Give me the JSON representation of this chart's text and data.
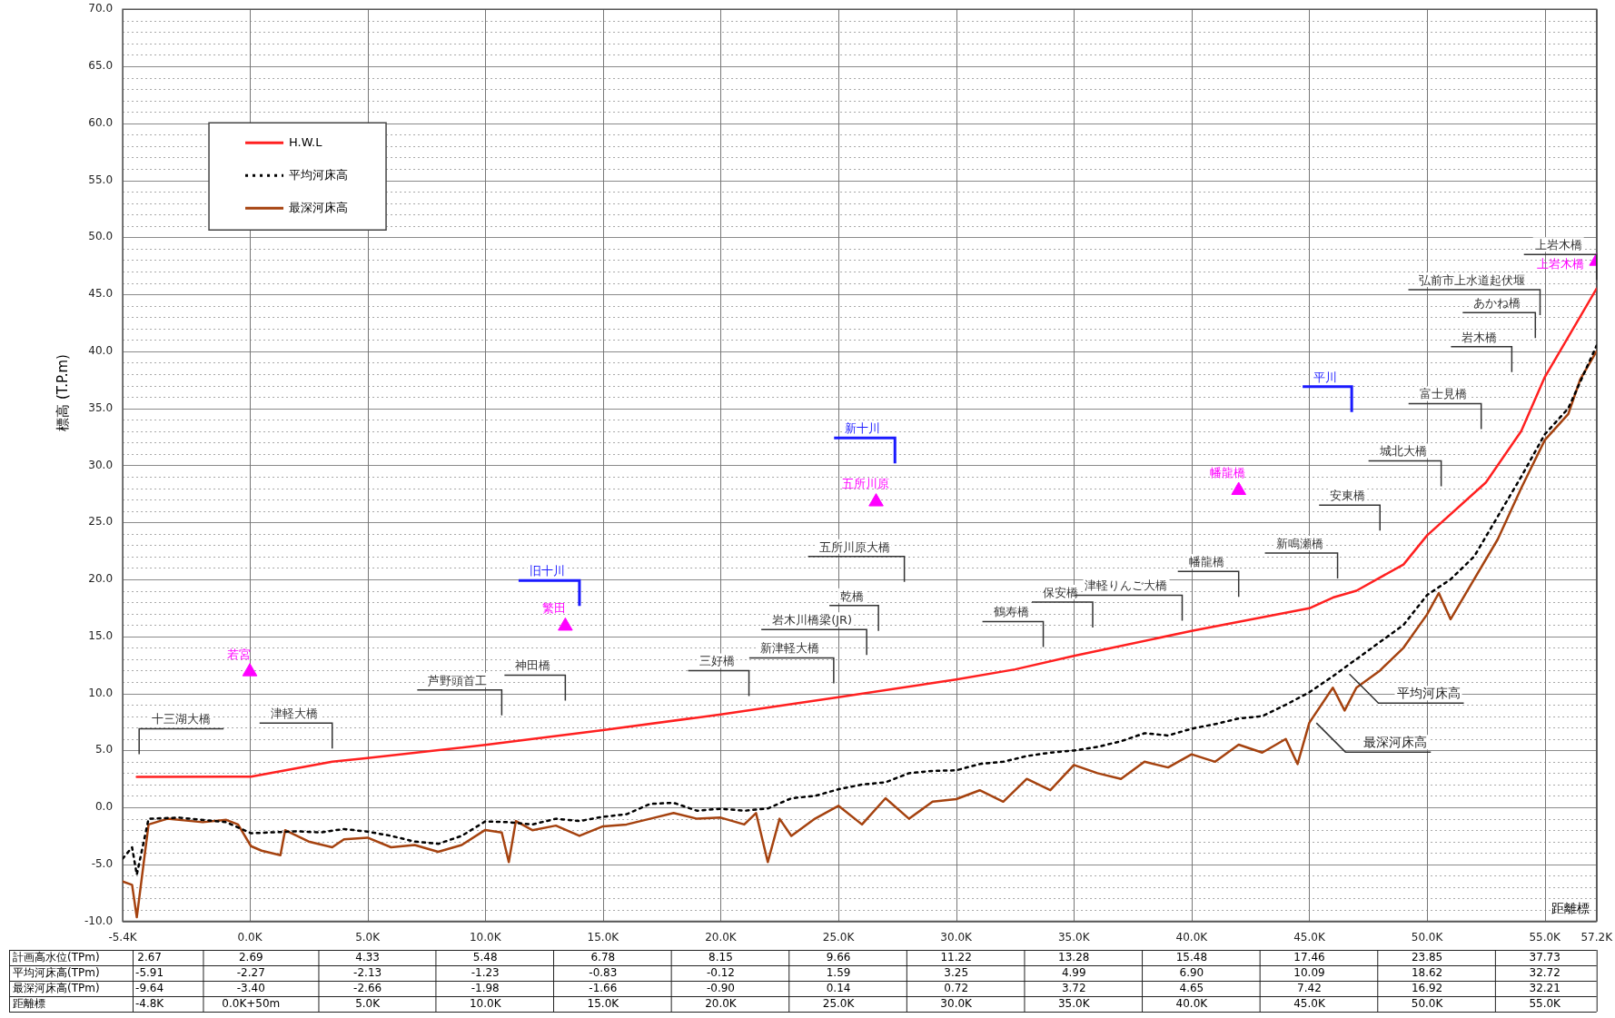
{
  "chart_data": {
    "type": "line",
    "xlabel": "距離標",
    "ylabel": "標高 (T.P.m)",
    "xlim": [
      -5.4,
      57.2
    ],
    "xticks": [
      {
        "value": -5.4,
        "label": "-5.4K"
      },
      {
        "value": 0,
        "label": "0.0K"
      },
      {
        "value": 5,
        "label": "5.0K"
      },
      {
        "value": 10,
        "label": "10.0K"
      },
      {
        "value": 15,
        "label": "15.0K"
      },
      {
        "value": 20,
        "label": "20.0K"
      },
      {
        "value": 25,
        "label": "25.0K"
      },
      {
        "value": 30,
        "label": "30.0K"
      },
      {
        "value": 35,
        "label": "35.0K"
      },
      {
        "value": 40,
        "label": "40.0K"
      },
      {
        "value": 45,
        "label": "45.0K"
      },
      {
        "value": 50,
        "label": "50.0K"
      },
      {
        "value": 55,
        "label": "55.0K"
      },
      {
        "value": 57.2,
        "label": "57.2K"
      }
    ],
    "ylim": [
      -10,
      70
    ],
    "yticks": [
      {
        "value": -10,
        "label": "-10.0"
      },
      {
        "value": -9,
        "label": null
      },
      {
        "value": -8,
        "label": null
      },
      {
        "value": -7,
        "label": null
      },
      {
        "value": -6,
        "label": null
      },
      {
        "value": -5,
        "label": "-5.0"
      },
      {
        "value": -4,
        "label": null
      },
      {
        "value": -3,
        "label": null
      },
      {
        "value": -2,
        "label": null
      },
      {
        "value": -1,
        "label": null
      },
      {
        "value": 0,
        "label": "0.0"
      },
      {
        "value": 1,
        "label": null
      },
      {
        "value": 2,
        "label": null
      },
      {
        "value": 3,
        "label": null
      },
      {
        "value": 4,
        "label": null
      },
      {
        "value": 5,
        "label": "5.0"
      },
      {
        "value": 6,
        "label": null
      },
      {
        "value": 7,
        "label": null
      },
      {
        "value": 8,
        "label": null
      },
      {
        "value": 9,
        "label": null
      },
      {
        "value": 10,
        "label": "10.0"
      },
      {
        "value": 11,
        "label": null
      },
      {
        "value": 12,
        "label": null
      },
      {
        "value": 13,
        "label": null
      },
      {
        "value": 14,
        "label": null
      },
      {
        "value": 15,
        "label": "15.0"
      },
      {
        "value": 16,
        "label": null
      },
      {
        "value": 17,
        "label": null
      },
      {
        "value": 18,
        "label": null
      },
      {
        "value": 19,
        "label": null
      },
      {
        "value": 20,
        "label": "20.0"
      },
      {
        "value": 21,
        "label": null
      },
      {
        "value": 22,
        "label": null
      },
      {
        "value": 23,
        "label": null
      },
      {
        "value": 24,
        "label": null
      },
      {
        "value": 25,
        "label": "25.0"
      },
      {
        "value": 26,
        "label": null
      },
      {
        "value": 27,
        "label": null
      },
      {
        "value": 28,
        "label": null
      },
      {
        "value": 29,
        "label": null
      },
      {
        "value": 30,
        "label": "30.0"
      },
      {
        "value": 31,
        "label": null
      },
      {
        "value": 32,
        "label": null
      },
      {
        "value": 33,
        "label": null
      },
      {
        "value": 34,
        "label": null
      },
      {
        "value": 35,
        "label": "35.0"
      },
      {
        "value": 36,
        "label": null
      },
      {
        "value": 37,
        "label": null
      },
      {
        "value": 38,
        "label": null
      },
      {
        "value": 39,
        "label": null
      },
      {
        "value": 40,
        "label": "40.0"
      },
      {
        "value": 41,
        "label": null
      },
      {
        "value": 42,
        "label": null
      },
      {
        "value": 43,
        "label": null
      },
      {
        "value": 44,
        "label": null
      },
      {
        "value": 45,
        "label": "45.0"
      },
      {
        "value": 46,
        "label": null
      },
      {
        "value": 47,
        "label": null
      },
      {
        "value": 48,
        "label": null
      },
      {
        "value": 49,
        "label": null
      },
      {
        "value": 50,
        "label": "50.0"
      },
      {
        "value": 51,
        "label": null
      },
      {
        "value": 52,
        "label": null
      },
      {
        "value": 53,
        "label": null
      },
      {
        "value": 54,
        "label": null
      },
      {
        "value": 55,
        "label": "55.0"
      },
      {
        "value": 56,
        "label": null
      },
      {
        "value": 57,
        "label": null
      },
      {
        "value": 58,
        "label": null
      },
      {
        "value": 59,
        "label": null
      },
      {
        "value": 60,
        "label": "60.0"
      },
      {
        "value": 61,
        "label": null
      },
      {
        "value": 62,
        "label": null
      },
      {
        "value": 63,
        "label": null
      },
      {
        "value": 64,
        "label": null
      },
      {
        "value": 65,
        "label": "65.0"
      },
      {
        "value": 66,
        "label": null
      },
      {
        "value": 67,
        "label": null
      },
      {
        "value": 68,
        "label": null
      },
      {
        "value": 69,
        "label": null
      },
      {
        "value": 70,
        "label": "70.0"
      }
    ],
    "grid": true,
    "legend": "top left",
    "series": [
      {
        "name": "H.W.L",
        "color": "#ff2020",
        "line_style": "solid",
        "x": [
          -4.8,
          0.05,
          3.5,
          5,
          10,
          15,
          20,
          25,
          30,
          32.5,
          35,
          40,
          45,
          46,
          47,
          49,
          50,
          52.5,
          54,
          55,
          57.2
        ],
        "values": [
          2.67,
          2.69,
          4.0,
          4.33,
          5.48,
          6.78,
          8.15,
          9.66,
          11.22,
          12.1,
          13.28,
          15.48,
          17.46,
          18.4,
          19.0,
          21.3,
          23.85,
          28.5,
          33,
          37.73,
          45.5
        ]
      },
      {
        "name": "平均河床高",
        "color": "#000000",
        "line_style": "dotted",
        "x": [
          -5.4,
          -5.0,
          -4.8,
          -4.3,
          -3,
          -1,
          0.05,
          2,
          3,
          4,
          5,
          6,
          7,
          8,
          9,
          10,
          11,
          12,
          13,
          14,
          15,
          16,
          17,
          18,
          19,
          20,
          21,
          22,
          23,
          24,
          25,
          26,
          27,
          28,
          29,
          30,
          31,
          32,
          33,
          34,
          35,
          36,
          37,
          38,
          39,
          40,
          41,
          42,
          43,
          44,
          45,
          46,
          47,
          48,
          49,
          50,
          51,
          52,
          53,
          54,
          55,
          56,
          57.2
        ],
        "values": [
          -4.5,
          -3.5,
          -5.91,
          -1.0,
          -0.9,
          -1.3,
          -2.27,
          -2.1,
          -2.2,
          -1.9,
          -2.13,
          -2.5,
          -3.0,
          -3.2,
          -2.5,
          -1.23,
          -1.3,
          -1.5,
          -1.0,
          -1.2,
          -0.83,
          -0.6,
          0.3,
          0.4,
          -0.3,
          -0.12,
          -0.3,
          -0.1,
          0.8,
          1.0,
          1.59,
          2.0,
          2.2,
          3.0,
          3.2,
          3.25,
          3.8,
          4.0,
          4.5,
          4.8,
          4.99,
          5.3,
          5.8,
          6.5,
          6.3,
          6.9,
          7.3,
          7.8,
          8.0,
          9.0,
          10.09,
          11.5,
          13.0,
          14.5,
          16.0,
          18.62,
          20.0,
          22.0,
          25.5,
          29.0,
          32.72,
          35.0,
          40.5
        ]
      },
      {
        "name": "最深河床高",
        "color": "#a5420f",
        "line_style": "solid",
        "x": [
          -5.4,
          -5.0,
          -4.8,
          -4.3,
          -3.5,
          -2,
          -1,
          -0.5,
          0.05,
          0.5,
          1.3,
          1.5,
          2.5,
          3.5,
          4,
          5,
          6,
          7,
          8,
          9,
          10,
          10.7,
          11,
          11.3,
          12,
          13,
          14,
          15,
          16,
          17,
          18,
          19,
          20,
          21,
          21.5,
          22,
          22.5,
          23,
          24,
          25,
          26,
          27,
          28,
          29,
          30,
          31,
          32,
          33,
          34,
          35,
          36,
          37,
          38,
          39,
          40,
          41,
          42,
          43,
          44,
          44.5,
          45,
          46,
          46.5,
          47,
          48,
          49,
          50,
          50.5,
          51,
          52,
          53,
          54,
          55,
          56,
          56.5,
          57.2
        ],
        "values": [
          -6.5,
          -6.8,
          -9.64,
          -1.5,
          -1.0,
          -1.3,
          -1.1,
          -1.5,
          -3.4,
          -3.8,
          -4.2,
          -2.0,
          -3.0,
          -3.5,
          -2.8,
          -2.66,
          -3.5,
          -3.3,
          -3.9,
          -3.3,
          -1.98,
          -2.2,
          -4.8,
          -1.2,
          -2.0,
          -1.6,
          -2.5,
          -1.66,
          -1.5,
          -1.0,
          -0.5,
          -1.0,
          -0.9,
          -1.5,
          -0.5,
          -4.8,
          -1.0,
          -2.5,
          -1.0,
          0.14,
          -1.5,
          0.8,
          -1.0,
          0.5,
          0.72,
          1.5,
          0.5,
          2.5,
          1.5,
          3.72,
          3.0,
          2.5,
          4.0,
          3.5,
          4.65,
          4.0,
          5.5,
          4.8,
          6.0,
          3.8,
          7.42,
          10.5,
          8.5,
          10.5,
          12.0,
          14.0,
          16.92,
          18.8,
          16.5,
          20.0,
          23.5,
          28.0,
          32.21,
          34.5,
          37.5,
          40.0
        ]
      },
      {
        "type": "scatter",
        "color": "#ff00ff",
        "marker": "triangle",
        "x": [
          0,
          13.4,
          26.6,
          42.0,
          57.2
        ],
        "values": [
          11.9,
          15.9,
          26.8,
          27.8,
          47.9
        ],
        "value_labels": [
          "若宮",
          "繁田",
          "五所川原",
          "幡龍橋",
          "上岩木橋"
        ]
      }
    ],
    "annotations": [
      "計画高水位(TPm)",
      "2.67",
      "2.69",
      "4.33",
      "5.48",
      "6.78",
      "8.15",
      "9.66",
      "11.22",
      "13.28",
      "15.48",
      "17.46",
      "23.85",
      "37.73",
      "平均河床高(TPm)",
      "-5.91",
      "-2.27",
      "-2.13",
      "-1.23",
      "-0.83",
      "-0.12",
      "1.59",
      "3.25",
      "4.99",
      "6.90",
      "10.09",
      "18.62",
      "32.72",
      "最深河床高(TPm)",
      "-9.64",
      "-3.40",
      "-2.66",
      "-1.98",
      "-1.66",
      "-0.90",
      "0.14",
      "0.72",
      "3.72",
      "4.65",
      "7.42",
      "16.92",
      "32.21",
      "距離標",
      "-4.8K",
      "0.0K+50m",
      "5.0K",
      "10.0K",
      "15.0K",
      "20.0K",
      "25.0K",
      "30.0K",
      "35.0K",
      "40.0K",
      "45.0K",
      "50.0K",
      "55.0K",
      "十三湖大橋",
      "津軽大橋",
      "芦野頭首工",
      "神田橋",
      "三好橋",
      "新津軽大橋",
      "岩木川橋梁(JR)",
      "乾橋",
      "五所川原大橋",
      "鶴寿橋",
      "保安橋",
      "津軽りんご大橋",
      "幡龍橋",
      "新鳴瀬橋",
      "安東橋",
      "城北大橋",
      "富士見橋",
      "岩木橋",
      "あかね橋",
      "弘前市上水道起伏堰",
      "上岩木橋",
      "旧十川",
      "新十川",
      "平川",
      "平均河床高",
      "最深河床高"
    ]
  }
}
